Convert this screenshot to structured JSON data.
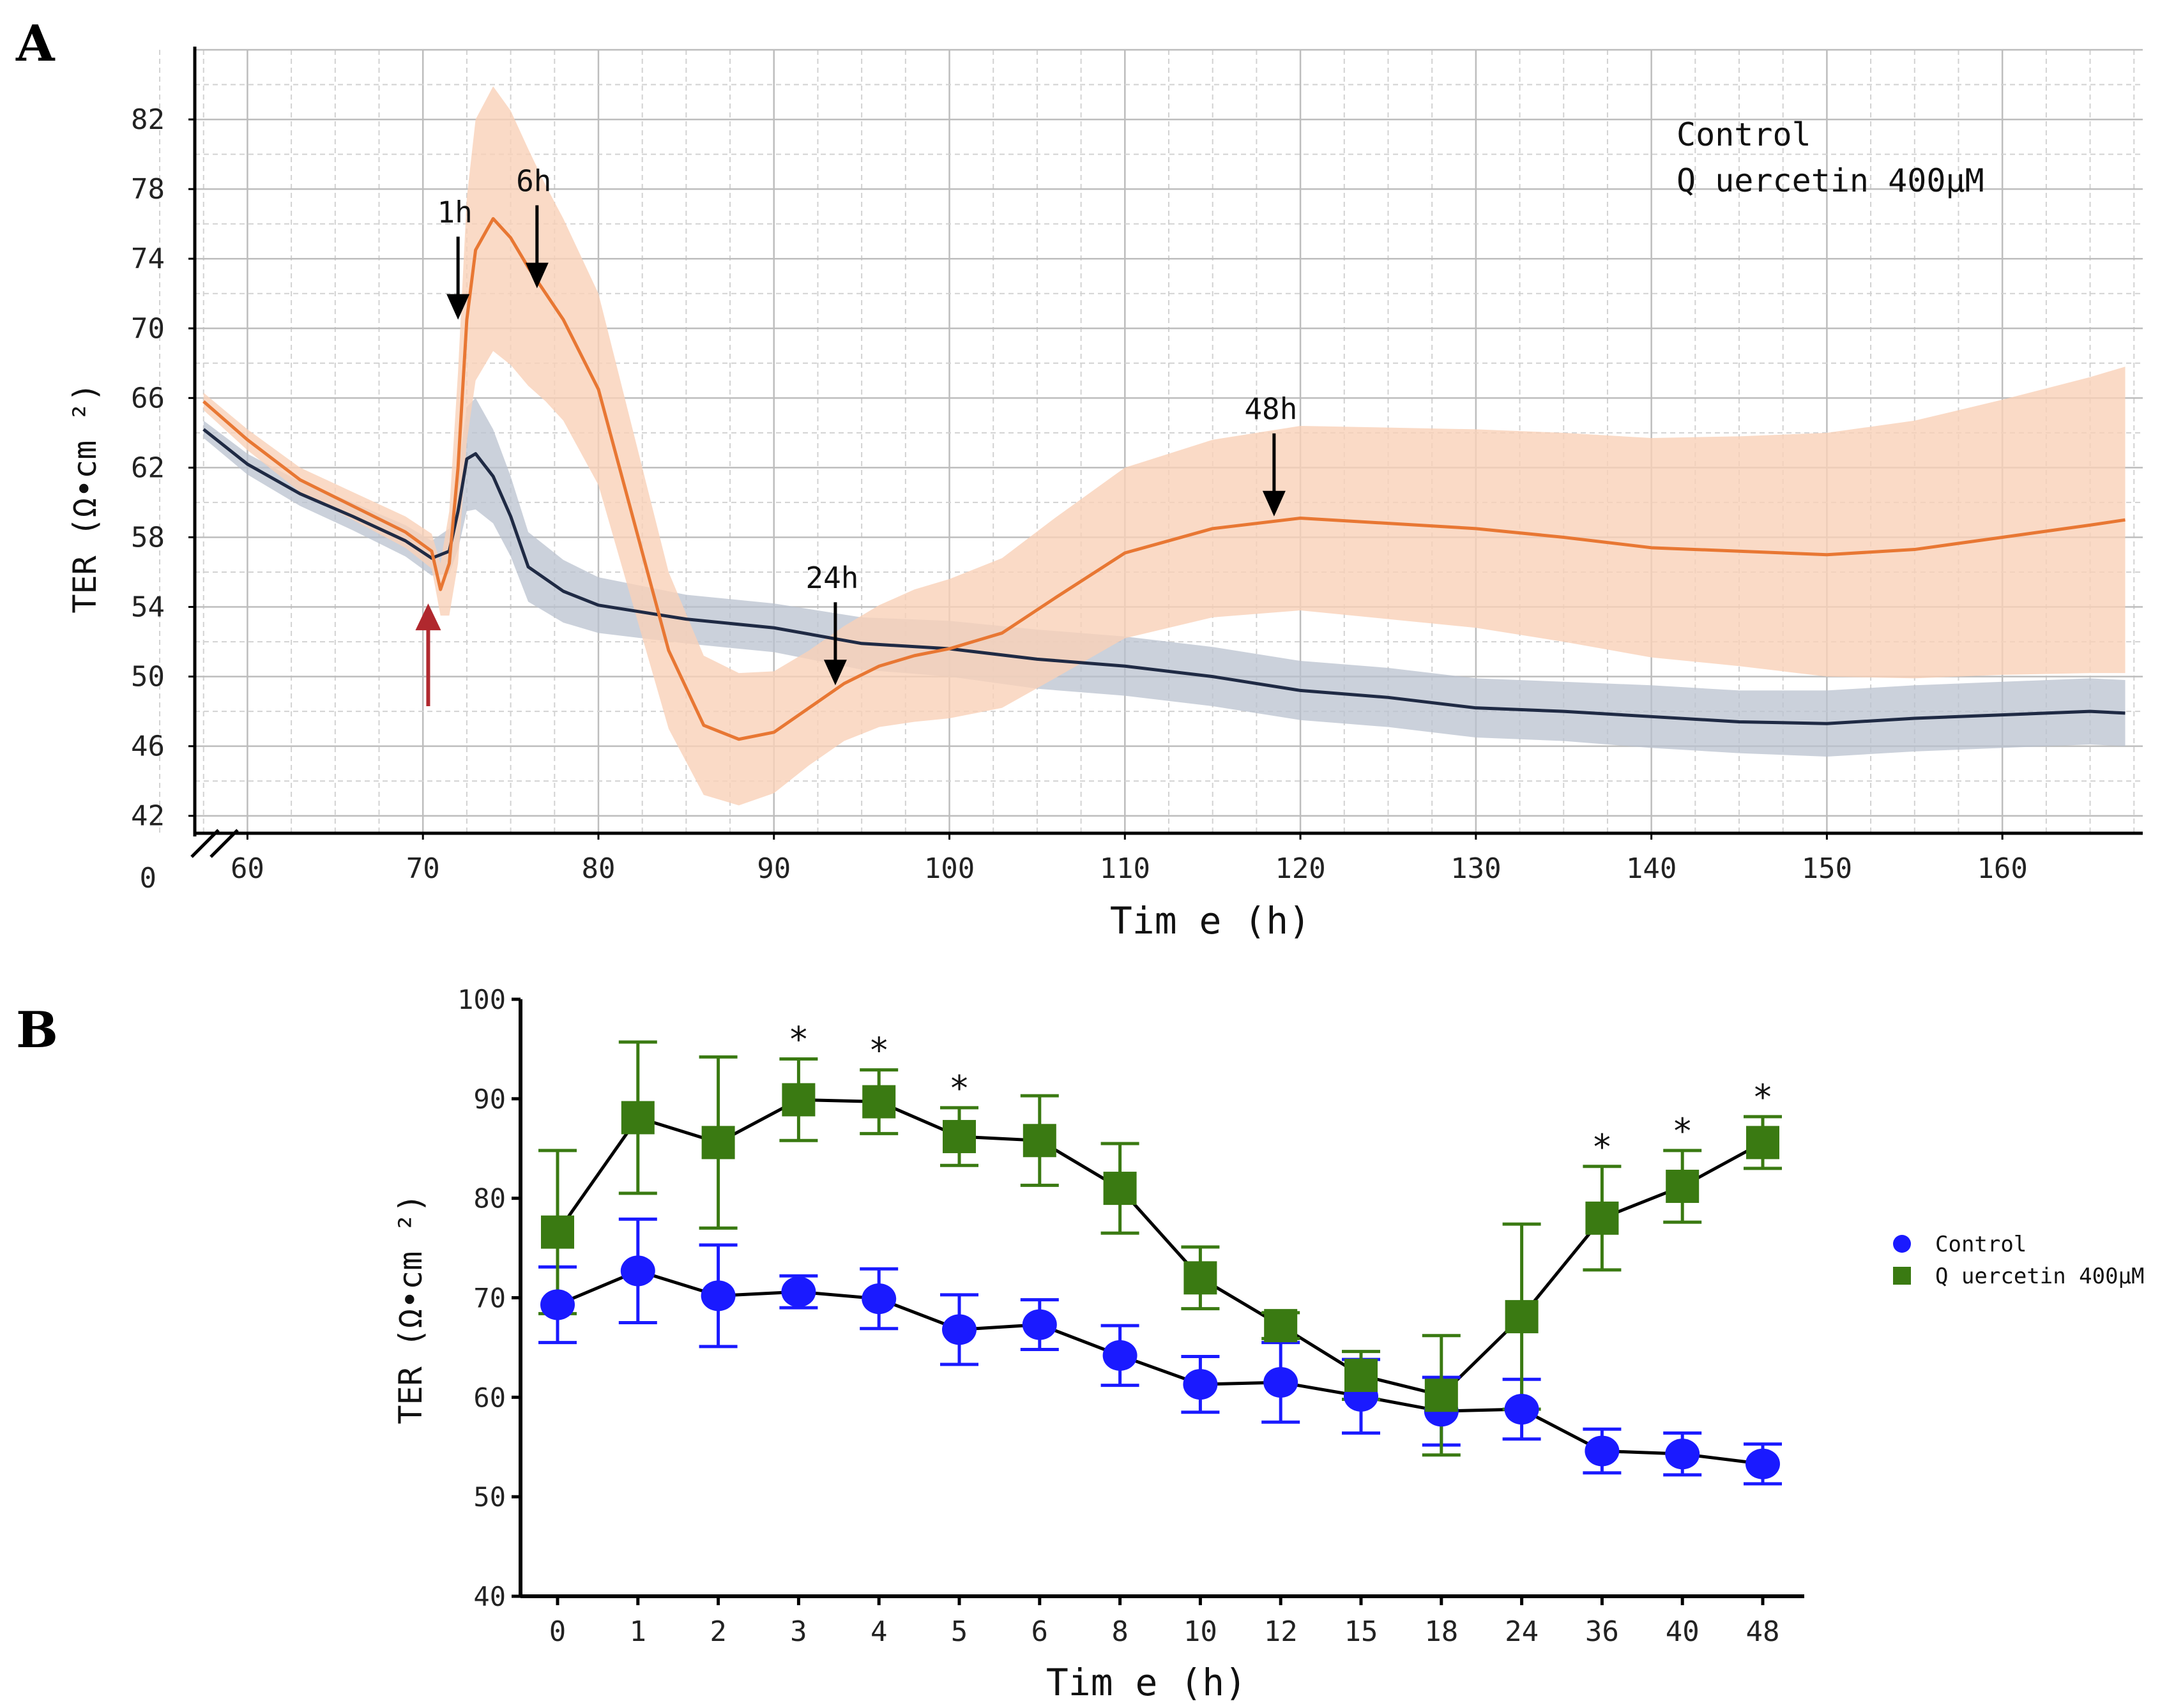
{
  "panels": {
    "a": {
      "letter": "A"
    },
    "b": {
      "letter": "B"
    }
  },
  "chart_data": [
    {
      "type": "line",
      "panel": "A",
      "title": "",
      "xlabel": "Tim e (h)",
      "ylabel": "TER (Ω•cm ²)",
      "xlim": [
        57,
        168
      ],
      "ylim": [
        41,
        86
      ],
      "xticks": [
        60,
        70,
        80,
        90,
        100,
        110,
        120,
        130,
        140,
        150,
        160
      ],
      "yticks": [
        42,
        46,
        50,
        54,
        58,
        62,
        66,
        70,
        74,
        78,
        82
      ],
      "axis_break_label": "0",
      "grid": true,
      "legend": [
        "Control",
        "Q uercetin 400µM"
      ],
      "colors": {
        "control": "#1f2a44",
        "control_band": "#b9c2cf",
        "quercetin": "#e87733",
        "quercetin_band": "#f9d1b8",
        "treatment_arrow": "#b0282e"
      },
      "series": [
        {
          "name": "Control",
          "x": [
            57.5,
            60,
            63,
            66,
            69,
            70.5,
            71.5,
            72,
            72.5,
            73,
            74,
            75,
            76,
            78,
            80,
            85,
            90,
            95,
            100,
            105,
            110,
            115,
            120,
            125,
            130,
            135,
            140,
            145,
            150,
            155,
            160,
            165,
            167
          ],
          "y": [
            64.2,
            62.2,
            60.5,
            59.2,
            57.8,
            56.8,
            57.2,
            59.5,
            62.5,
            62.8,
            61.5,
            59.2,
            56.3,
            54.9,
            54.1,
            53.3,
            52.8,
            51.9,
            51.6,
            51.0,
            50.6,
            50.0,
            49.2,
            48.8,
            48.2,
            48.0,
            47.7,
            47.4,
            47.3,
            47.6,
            47.8,
            48.0,
            47.9
          ],
          "band": [
            0.5,
            0.6,
            0.7,
            0.8,
            0.9,
            1.0,
            1.3,
            2.2,
            3.0,
            3.2,
            2.7,
            2.3,
            2.0,
            1.8,
            1.6,
            1.4,
            1.4,
            1.5,
            1.6,
            1.7,
            1.7,
            1.7,
            1.7,
            1.7,
            1.7,
            1.7,
            1.8,
            1.8,
            1.9,
            1.9,
            1.9,
            1.9,
            1.9
          ]
        },
        {
          "name": "Q uercetin 400µM",
          "x": [
            57.5,
            60,
            63,
            66,
            69,
            70.5,
            71,
            71.5,
            72,
            72.5,
            73,
            74,
            75,
            76,
            77,
            78,
            80,
            82,
            84,
            86,
            88,
            90,
            92,
            94,
            96,
            98,
            100,
            103,
            106,
            110,
            115,
            120,
            125,
            130,
            135,
            140,
            145,
            150,
            155,
            160,
            165,
            167
          ],
          "y": [
            65.8,
            63.6,
            61.3,
            59.8,
            58.3,
            57.2,
            55.0,
            56.5,
            62.0,
            70.5,
            74.5,
            76.3,
            75.2,
            73.5,
            72.0,
            70.5,
            66.5,
            59.0,
            51.5,
            47.2,
            46.4,
            46.8,
            48.2,
            49.6,
            50.6,
            51.2,
            51.6,
            52.5,
            54.5,
            57.1,
            58.5,
            59.1,
            58.8,
            58.5,
            58.0,
            57.4,
            57.2,
            57.0,
            57.3,
            58.0,
            58.7,
            59.0
          ],
          "band": [
            0.5,
            0.6,
            0.7,
            0.8,
            0.9,
            1.0,
            1.5,
            3.0,
            5.5,
            7.0,
            7.5,
            7.6,
            7.3,
            6.8,
            6.2,
            5.8,
            5.5,
            5.0,
            4.5,
            4.0,
            3.8,
            3.5,
            3.3,
            3.3,
            3.5,
            3.8,
            4.0,
            4.3,
            4.6,
            4.9,
            5.1,
            5.3,
            5.5,
            5.7,
            6.0,
            6.3,
            6.6,
            7.0,
            7.4,
            7.9,
            8.5,
            8.8
          ]
        }
      ],
      "annotations": [
        {
          "label": "1h",
          "x": 72,
          "y_tip": 70.5
        },
        {
          "label": "6h",
          "x": 76.5,
          "y_tip": 72.3
        },
        {
          "label": "24h",
          "x": 93.5,
          "y_tip": 49.5
        },
        {
          "label": "48h",
          "x": 118.5,
          "y_tip": 59.2
        }
      ],
      "treatment_arrow": {
        "x": 70.3,
        "y_from": 48.3,
        "y_to": 54.2
      }
    },
    {
      "type": "line",
      "panel": "B",
      "title": "",
      "xlabel": "Tim e (h)",
      "ylabel": "TER (Ω•cm ²)",
      "categories": [
        "0",
        "1",
        "2",
        "3",
        "4",
        "5",
        "6",
        "8",
        "10",
        "12",
        "15",
        "18",
        "24",
        "36",
        "40",
        "48"
      ],
      "ylim": [
        40,
        100
      ],
      "yticks": [
        40,
        50,
        60,
        70,
        80,
        90,
        100
      ],
      "legend": [
        "Control",
        "Q uercetin 400µM"
      ],
      "colors": {
        "control": "#1a1aff",
        "quercetin": "#3a7a12"
      },
      "series": [
        {
          "name": "Control",
          "marker": "circle",
          "values": [
            69.3,
            72.7,
            70.2,
            70.6,
            69.9,
            66.8,
            67.3,
            64.2,
            61.3,
            61.5,
            60.1,
            58.6,
            58.8,
            54.6,
            54.3,
            53.3
          ],
          "errors": [
            3.8,
            5.2,
            5.1,
            1.6,
            3.0,
            3.5,
            2.5,
            3.0,
            2.8,
            4.0,
            3.7,
            3.4,
            3.0,
            2.2,
            2.1,
            2.0
          ]
        },
        {
          "name": "Q uercetin 400µM",
          "marker": "square",
          "values": [
            76.6,
            88.1,
            85.6,
            89.9,
            89.7,
            86.2,
            85.8,
            81.0,
            72.0,
            67.2,
            62.2,
            60.2,
            68.1,
            78.0,
            81.2,
            85.6
          ],
          "errors": [
            8.2,
            7.6,
            8.6,
            4.1,
            3.2,
            2.9,
            4.5,
            4.5,
            3.1,
            1.3,
            2.4,
            6.0,
            9.3,
            5.2,
            3.6,
            2.6
          ]
        }
      ],
      "significance": [
        {
          "category": "3",
          "label": "*"
        },
        {
          "category": "4",
          "label": "*"
        },
        {
          "category": "5",
          "label": "*"
        },
        {
          "category": "36",
          "label": "*"
        },
        {
          "category": "40",
          "label": "*"
        },
        {
          "category": "48",
          "label": "*"
        }
      ]
    }
  ]
}
